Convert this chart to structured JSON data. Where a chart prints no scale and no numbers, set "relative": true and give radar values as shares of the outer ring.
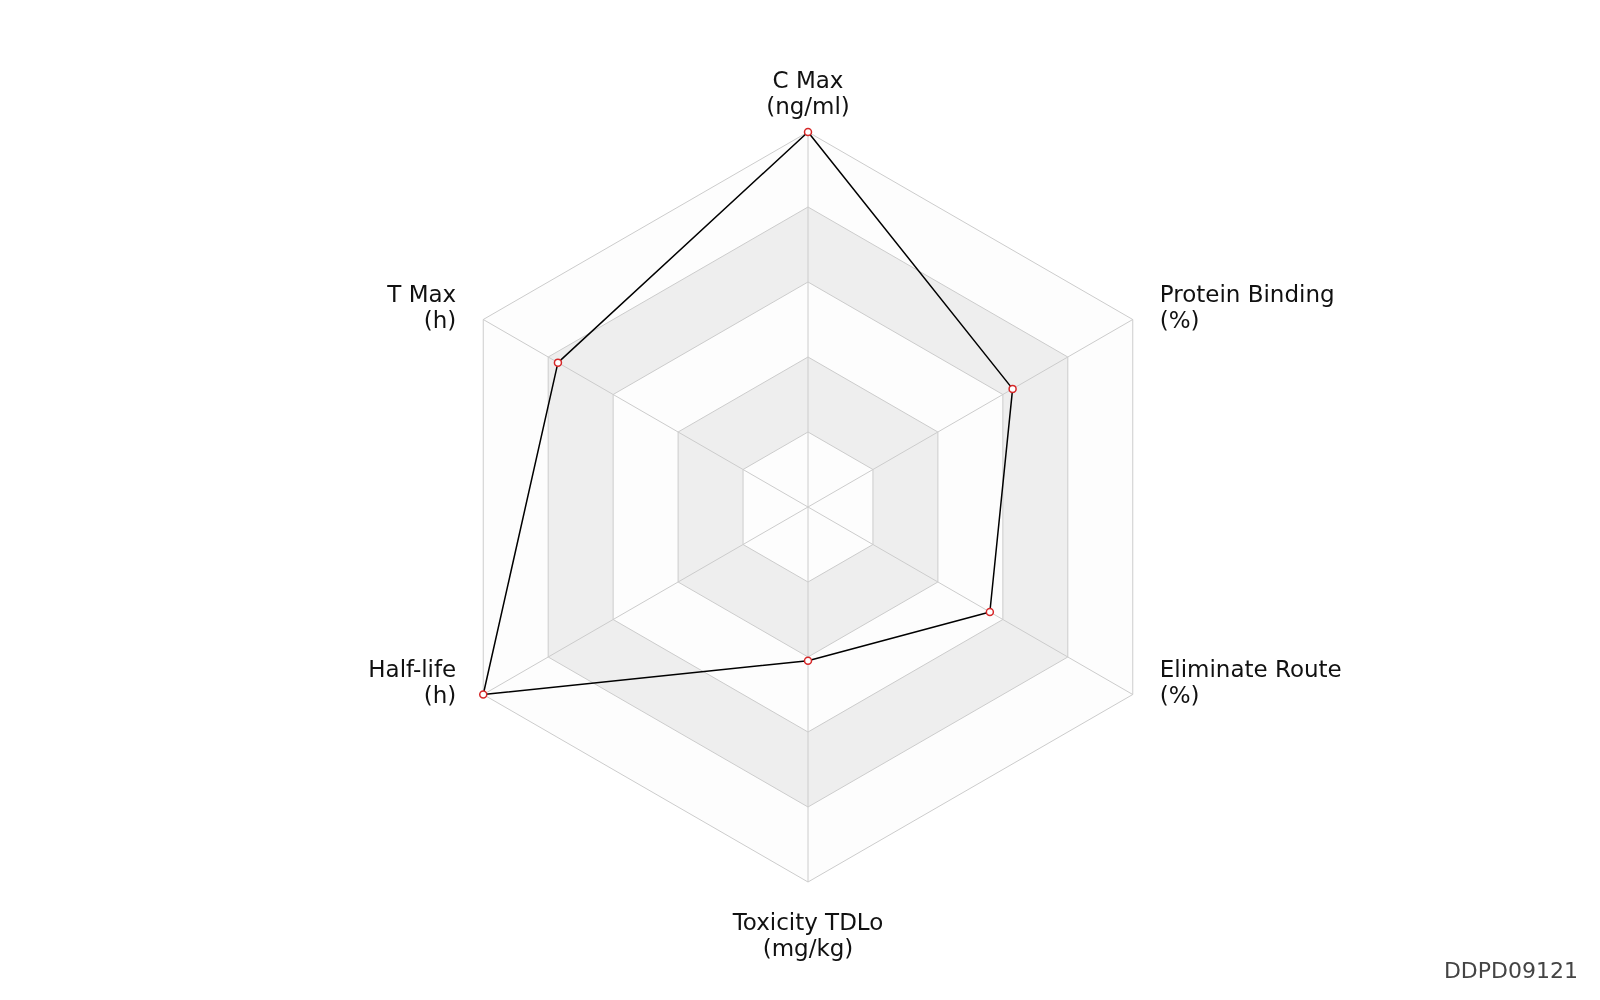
{
  "chart_data": {
    "type": "radar",
    "relative": true,
    "grid": true,
    "marker": "circle",
    "categories": [
      "C Max\n(ng/ml)",
      "Protein Binding\n(%)",
      "Eliminate Route\n(%)",
      "Toxicity TDLo\n(mg/kg)",
      "Half-life\n(h)",
      "T Max\n(h)"
    ],
    "series": [
      {
        "color": "#000000",
        "values": [
          1.0,
          0.63,
          0.56,
          0.41,
          1.0,
          0.77
        ]
      }
    ],
    "annotations": [
      "DDPD09121"
    ]
  }
}
